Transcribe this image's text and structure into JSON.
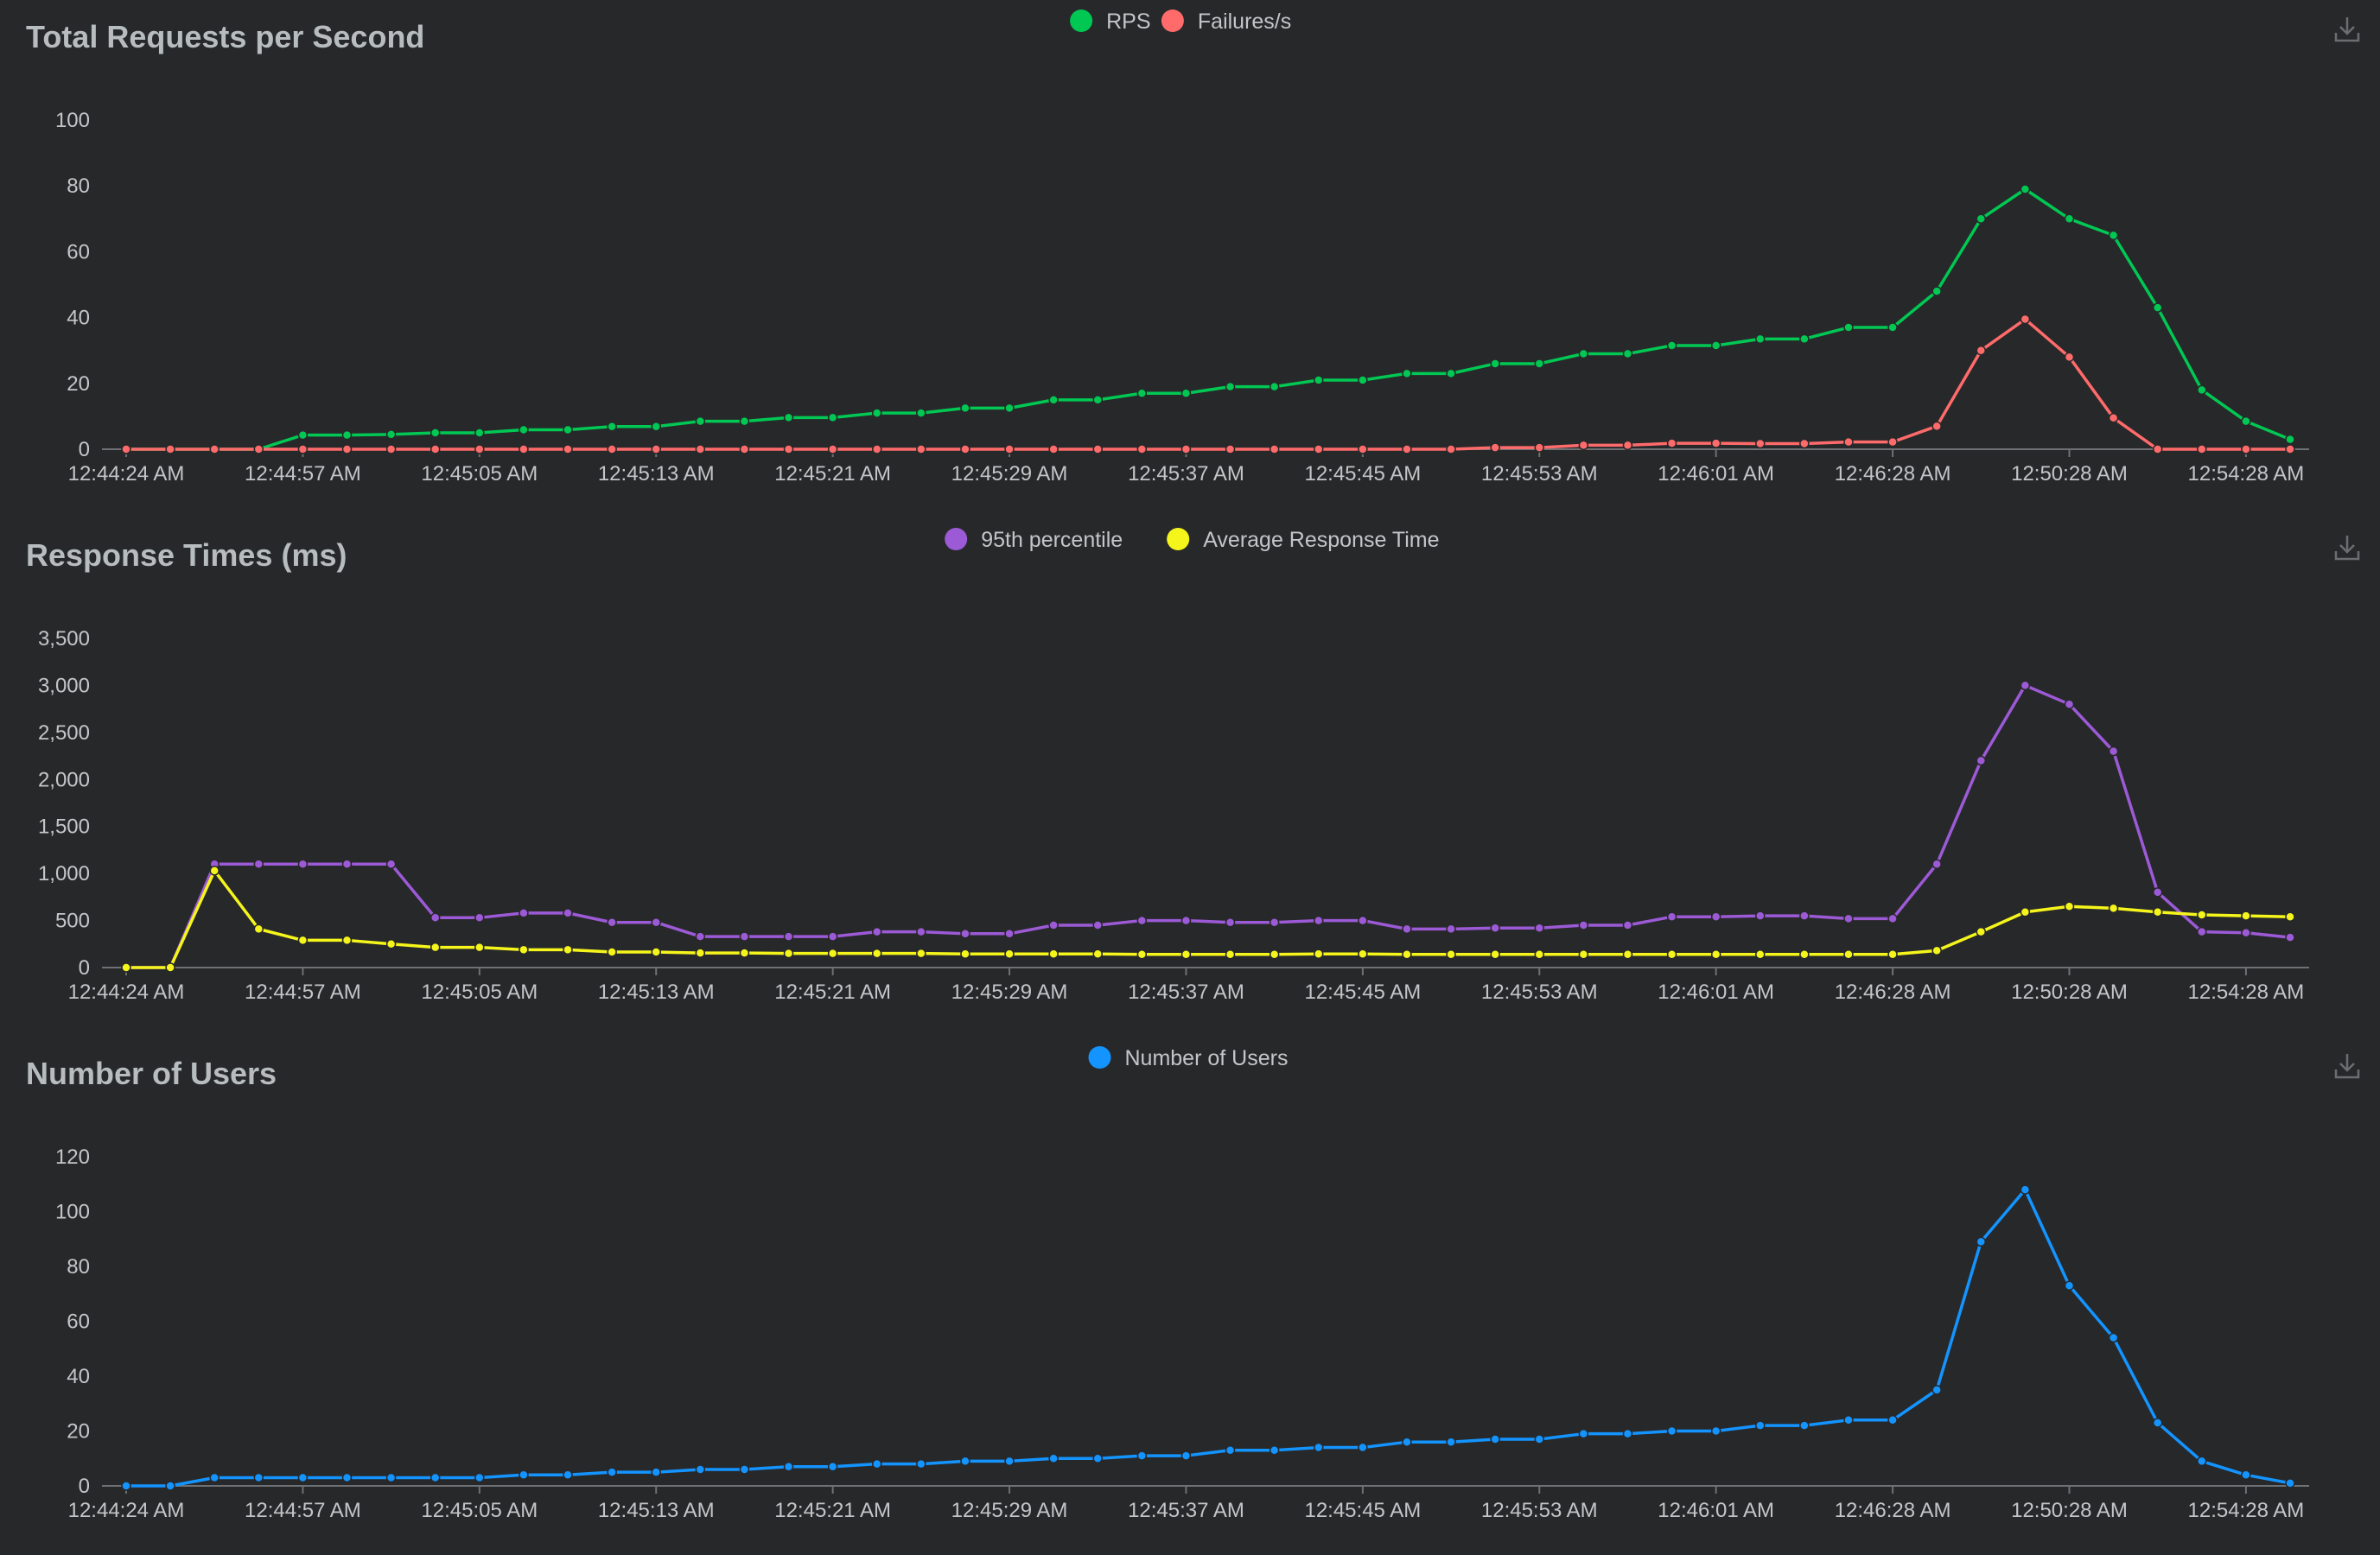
{
  "x_labels": [
    "12:44:24 AM",
    "12:44:57 AM",
    "12:45:05 AM",
    "12:45:13 AM",
    "12:45:21 AM",
    "12:45:29 AM",
    "12:45:37 AM",
    "12:45:45 AM",
    "12:45:53 AM",
    "12:46:01 AM",
    "12:46:28 AM",
    "12:50:28 AM",
    "12:54:28 AM"
  ],
  "chart_data": [
    {
      "type": "line",
      "title": "Total Requests per Second",
      "xlabel": "",
      "ylabel": "",
      "ylim": [
        0,
        100
      ],
      "yticks": [
        0,
        20,
        40,
        60,
        80,
        100
      ],
      "ytick_labels": [
        "0",
        "20",
        "40",
        "60",
        "80",
        "100"
      ],
      "grid": false,
      "legend": "top-center",
      "series": [
        {
          "name": "RPS",
          "color": "#00c853",
          "values": [
            0,
            0,
            0,
            0,
            4.3,
            4.3,
            4.5,
            5,
            5,
            5.9,
            5.9,
            6.9,
            6.9,
            8.5,
            8.5,
            9.6,
            9.6,
            11,
            11,
            12.5,
            12.5,
            15,
            15,
            17,
            17,
            19,
            19,
            21,
            21,
            23,
            23,
            26,
            26,
            29,
            29,
            31.5,
            31.5,
            33.5,
            33.5,
            37,
            37,
            48,
            70,
            79,
            70,
            65,
            43,
            18,
            8.5,
            3
          ]
        },
        {
          "name": "Failures/s",
          "color": "#ff6b6b",
          "values": [
            0,
            0,
            0,
            0,
            0,
            0,
            0,
            0,
            0,
            0,
            0,
            0,
            0,
            0,
            0,
            0,
            0,
            0,
            0,
            0,
            0,
            0,
            0,
            0,
            0,
            0,
            0,
            0,
            0,
            0,
            0,
            0.5,
            0.5,
            1.2,
            1.2,
            1.8,
            1.8,
            1.7,
            1.7,
            2.2,
            2.2,
            7,
            30,
            39.5,
            28,
            9.5,
            0,
            0,
            0,
            0
          ]
        }
      ]
    },
    {
      "type": "line",
      "title": "Response Times (ms)",
      "xlabel": "",
      "ylabel": "",
      "ylim": [
        0,
        3500
      ],
      "yticks": [
        0,
        500,
        1000,
        1500,
        2000,
        2500,
        3000,
        3500
      ],
      "ytick_labels": [
        "0",
        "500",
        "1,000",
        "1,500",
        "2,000",
        "2,500",
        "3,000",
        "3,500"
      ],
      "grid": false,
      "legend": "top-center",
      "series": [
        {
          "name": "95th percentile",
          "color": "#9c5ad6",
          "values": [
            0,
            0,
            1100,
            1100,
            1100,
            1100,
            1100,
            530,
            530,
            580,
            580,
            480,
            480,
            330,
            330,
            330,
            330,
            380,
            380,
            360,
            360,
            450,
            450,
            500,
            500,
            480,
            480,
            500,
            500,
            410,
            410,
            420,
            420,
            450,
            450,
            540,
            540,
            550,
            550,
            520,
            520,
            1100,
            2200,
            3000,
            2800,
            2300,
            800,
            380,
            370,
            320
          ]
        },
        {
          "name": "Average Response Time",
          "color": "#f5f51c",
          "values": [
            0,
            0,
            1030,
            410,
            290,
            290,
            250,
            215,
            215,
            190,
            190,
            165,
            165,
            155,
            155,
            150,
            150,
            150,
            150,
            145,
            145,
            145,
            145,
            140,
            140,
            140,
            140,
            145,
            145,
            140,
            140,
            140,
            140,
            140,
            140,
            140,
            140,
            140,
            140,
            140,
            140,
            180,
            380,
            590,
            650,
            630,
            590,
            560,
            550,
            540
          ]
        }
      ]
    },
    {
      "type": "line",
      "title": "Number of Users",
      "xlabel": "",
      "ylabel": "",
      "ylim": [
        0,
        120
      ],
      "yticks": [
        0,
        20,
        40,
        60,
        80,
        100,
        120
      ],
      "ytick_labels": [
        "0",
        "20",
        "40",
        "60",
        "80",
        "100",
        "120"
      ],
      "grid": false,
      "legend": "top-center",
      "series": [
        {
          "name": "Number of Users",
          "color": "#1394ff",
          "values": [
            0,
            0,
            3,
            3,
            3,
            3,
            3,
            3,
            3,
            4,
            4,
            5,
            5,
            6,
            6,
            7,
            7,
            8,
            8,
            9,
            9,
            10,
            10,
            11,
            11,
            13,
            13,
            14,
            14,
            16,
            16,
            17,
            17,
            19,
            19,
            20,
            20,
            22,
            22,
            24,
            24,
            35,
            89,
            108,
            73,
            54,
            23,
            9,
            4,
            1
          ]
        }
      ]
    }
  ]
}
